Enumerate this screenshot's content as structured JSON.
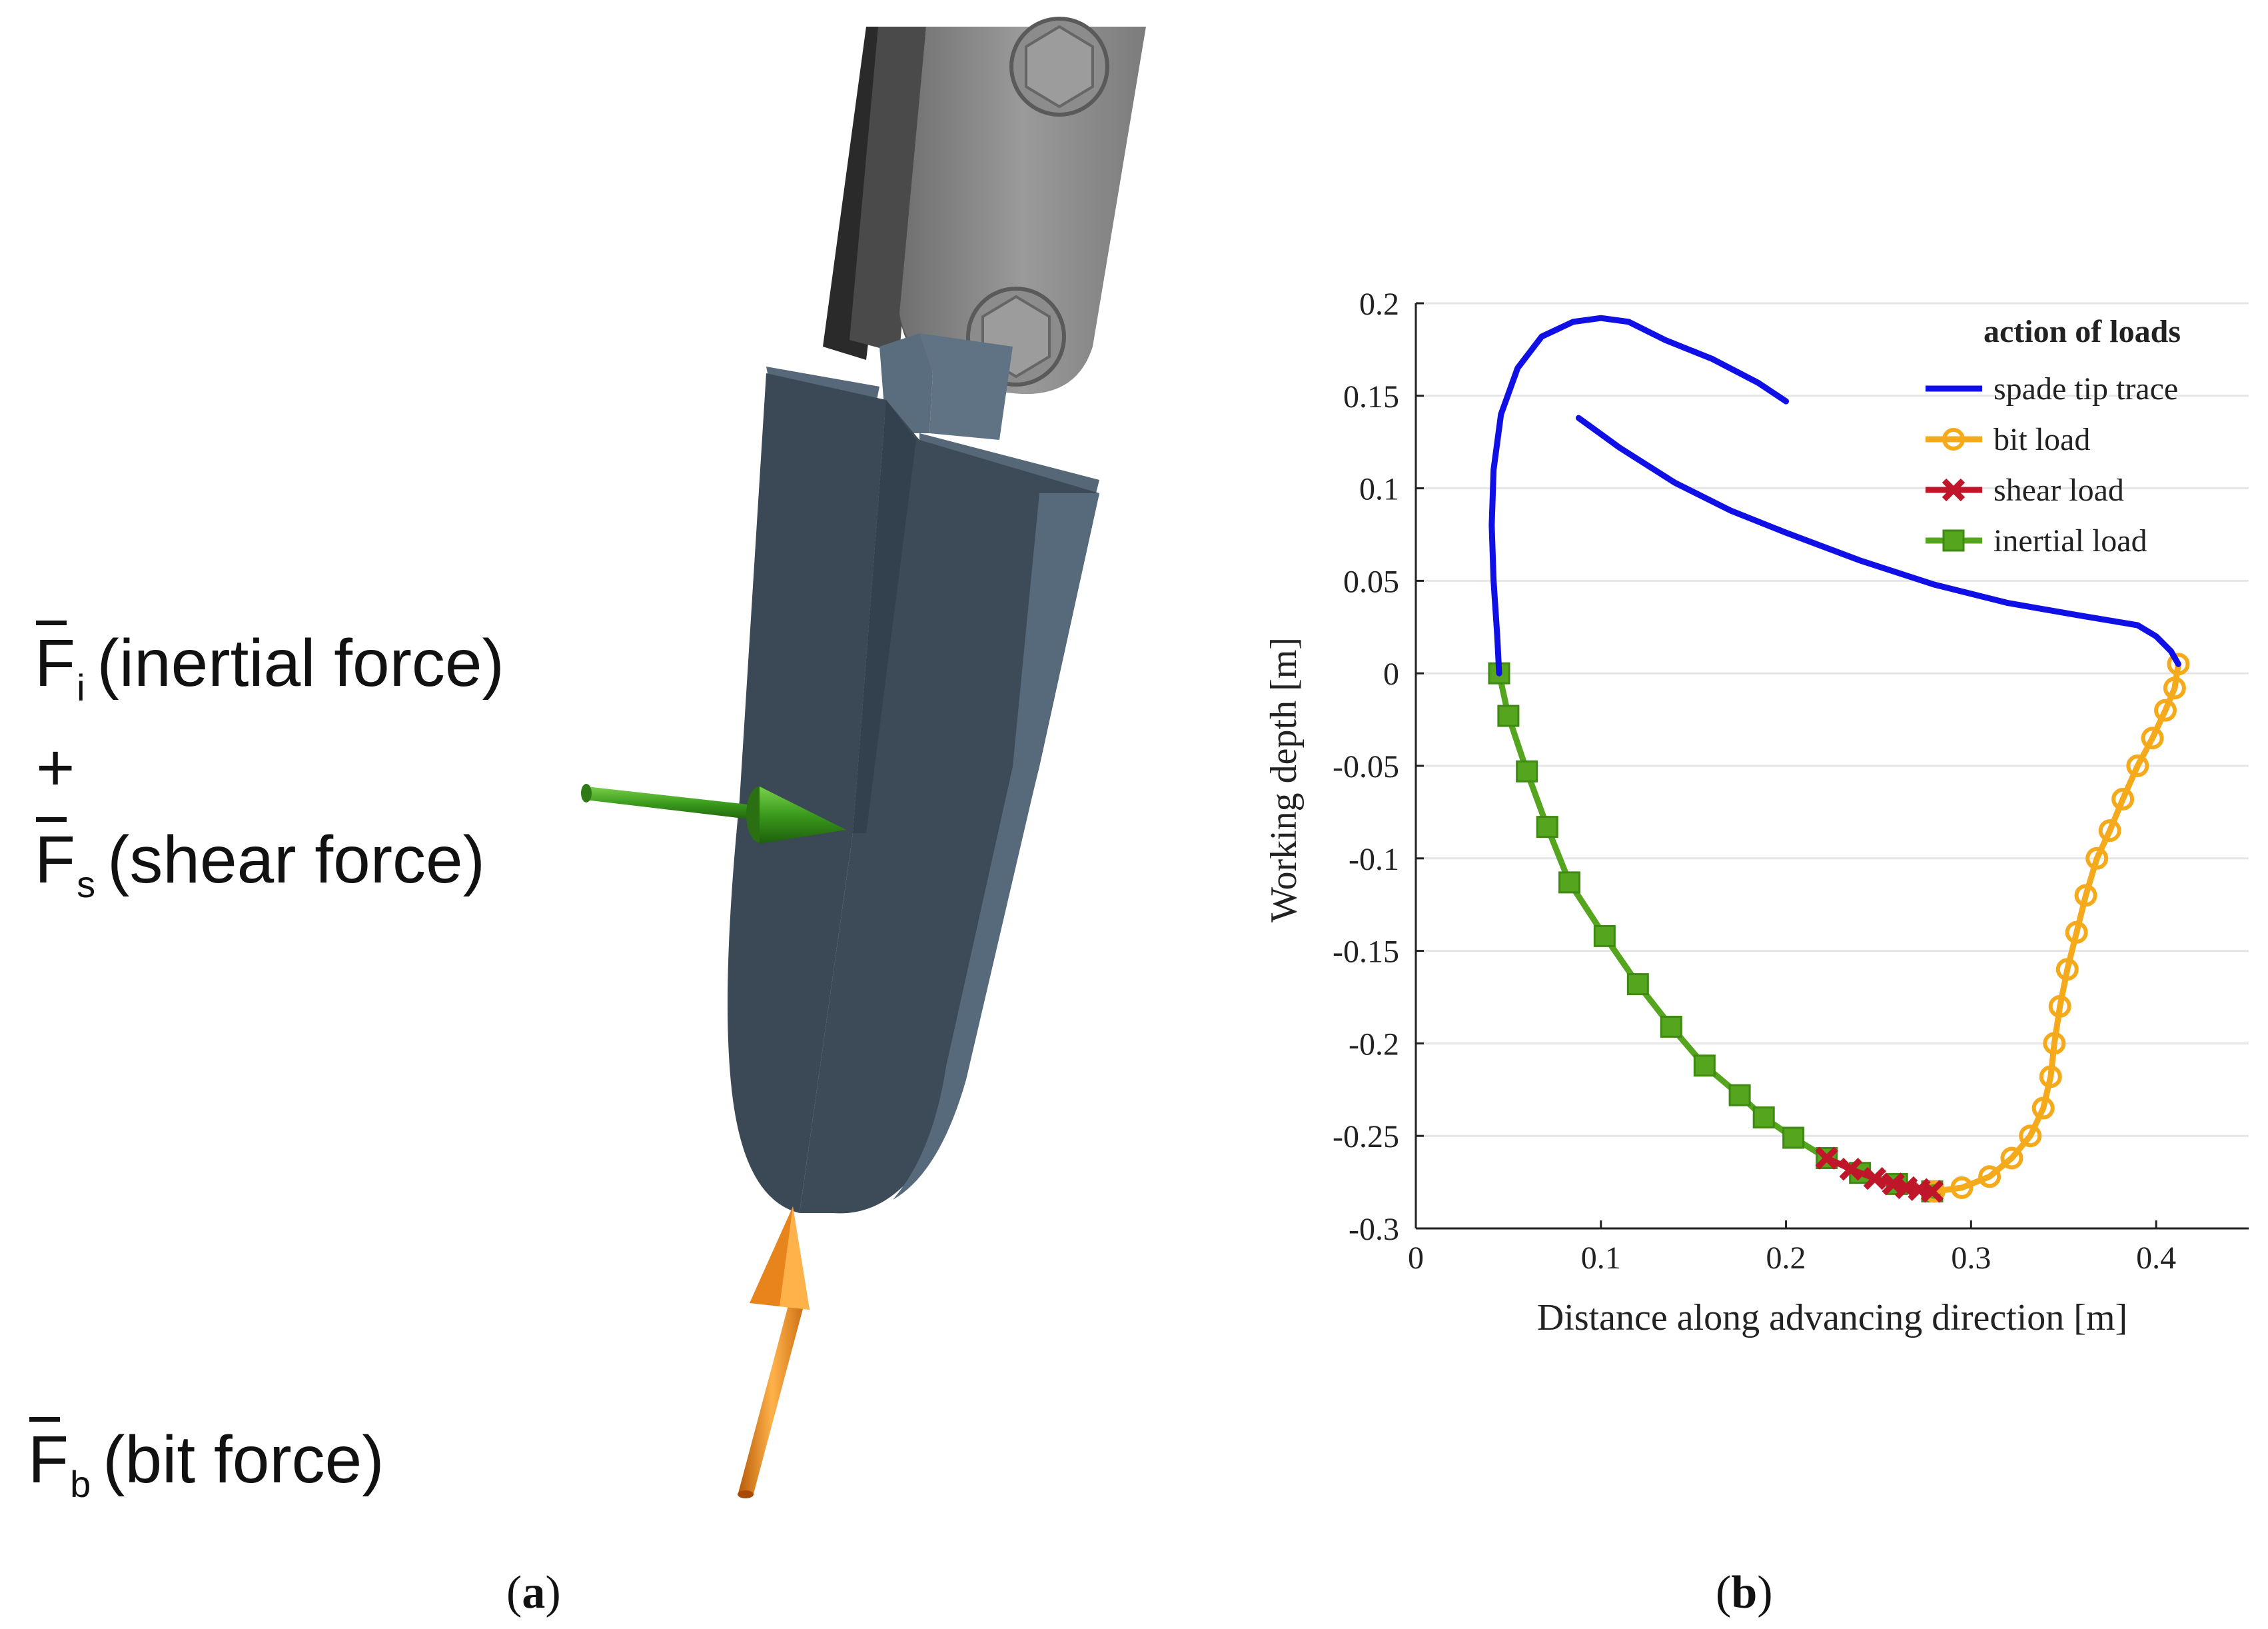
{
  "panel_a": {
    "forces": [
      {
        "symbol": "F",
        "subscript": "i",
        "description": "(inertial force)"
      },
      {
        "operator": "+"
      },
      {
        "symbol": "F",
        "subscript": "s",
        "description": "(shear force)"
      },
      {
        "symbol": "F",
        "subscript": "b",
        "description": "(bit force)"
      }
    ],
    "caption": {
      "open": "(",
      "letter": "a",
      "close": ")"
    },
    "colors": {
      "inertial_shear_arrow": "#3a9a1c",
      "bit_arrow": "#e8841c",
      "spade": "#3d4a58",
      "clamp": "#8a8a8a"
    }
  },
  "panel_b": {
    "caption": {
      "open": "(",
      "letter": "b",
      "close": ")"
    },
    "chart_data": {
      "type": "line",
      "xlabel": "Distance along advancing direction [m]",
      "ylabel": "Working depth [m]",
      "xlim": [
        0,
        0.45
      ],
      "ylim": [
        -0.3,
        0.2
      ],
      "x_ticks": [
        "0",
        "0.1",
        "0.2",
        "0.3",
        "0.4"
      ],
      "y_ticks": [
        "0.2",
        "0.15",
        "0.1",
        "0.05",
        "0",
        "-0.05",
        "-0.1",
        "-0.15",
        "-0.2",
        "-0.25",
        "-0.3"
      ],
      "grid": "horizontal",
      "legend": {
        "title": "action of loads",
        "position": "top-right",
        "entries": [
          "spade tip trace",
          "bit load",
          "shear load",
          "inertial load"
        ]
      },
      "series": [
        {
          "name": "spade tip trace",
          "color": "#1010e6",
          "marker": "none",
          "segments": [
            [
              [
                0.045,
                0.0
              ],
              [
                0.044,
                0.02
              ],
              [
                0.042,
                0.05
              ],
              [
                0.041,
                0.08
              ],
              [
                0.042,
                0.11
              ],
              [
                0.046,
                0.14
              ],
              [
                0.055,
                0.165
              ],
              [
                0.068,
                0.182
              ],
              [
                0.085,
                0.19
              ],
              [
                0.1,
                0.192
              ],
              [
                0.115,
                0.19
              ],
              [
                0.135,
                0.18
              ],
              [
                0.16,
                0.17
              ],
              [
                0.185,
                0.157
              ],
              [
                0.2,
                0.147
              ]
            ],
            [
              [
                0.088,
                0.138
              ],
              [
                0.11,
                0.122
              ],
              [
                0.14,
                0.103
              ],
              [
                0.17,
                0.088
              ],
              [
                0.2,
                0.076
              ],
              [
                0.24,
                0.061
              ],
              [
                0.28,
                0.048
              ],
              [
                0.32,
                0.038
              ],
              [
                0.36,
                0.031
              ],
              [
                0.39,
                0.026
              ],
              [
                0.4,
                0.02
              ],
              [
                0.408,
                0.012
              ],
              [
                0.412,
                0.005
              ]
            ]
          ]
        },
        {
          "name": "bit load",
          "color": "#f5aa1c",
          "marker": "circle",
          "points": [
            [
              0.412,
              0.005
            ],
            [
              0.41,
              -0.008
            ],
            [
              0.405,
              -0.02
            ],
            [
              0.398,
              -0.035
            ],
            [
              0.39,
              -0.05
            ],
            [
              0.382,
              -0.068
            ],
            [
              0.375,
              -0.085
            ],
            [
              0.368,
              -0.1
            ],
            [
              0.362,
              -0.12
            ],
            [
              0.357,
              -0.14
            ],
            [
              0.352,
              -0.16
            ],
            [
              0.348,
              -0.18
            ],
            [
              0.345,
              -0.2
            ],
            [
              0.343,
              -0.218
            ],
            [
              0.339,
              -0.235
            ],
            [
              0.332,
              -0.25
            ],
            [
              0.322,
              -0.262
            ],
            [
              0.31,
              -0.272
            ],
            [
              0.295,
              -0.278
            ],
            [
              0.28,
              -0.28
            ]
          ]
        },
        {
          "name": "shear load",
          "color": "#c0162a",
          "marker": "x",
          "points": [
            [
              0.222,
              -0.262
            ],
            [
              0.235,
              -0.268
            ],
            [
              0.248,
              -0.273
            ],
            [
              0.258,
              -0.276
            ],
            [
              0.265,
              -0.278
            ],
            [
              0.272,
              -0.279
            ],
            [
              0.279,
              -0.28
            ]
          ]
        },
        {
          "name": "inertial load",
          "color": "#55a51e",
          "marker": "square",
          "points": [
            [
              0.045,
              0.0
            ],
            [
              0.05,
              -0.023
            ],
            [
              0.06,
              -0.053
            ],
            [
              0.071,
              -0.083
            ],
            [
              0.083,
              -0.113
            ],
            [
              0.102,
              -0.142
            ],
            [
              0.12,
              -0.168
            ],
            [
              0.138,
              -0.191
            ],
            [
              0.156,
              -0.212
            ],
            [
              0.175,
              -0.228
            ],
            [
              0.188,
              -0.24
            ],
            [
              0.204,
              -0.251
            ],
            [
              0.222,
              -0.262
            ],
            [
              0.24,
              -0.27
            ],
            [
              0.26,
              -0.276
            ],
            [
              0.279,
              -0.28
            ]
          ]
        }
      ]
    }
  }
}
